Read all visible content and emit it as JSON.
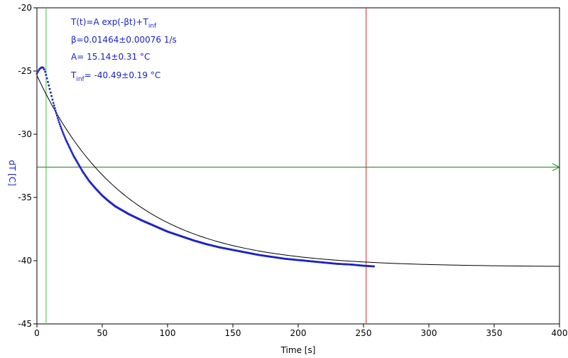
{
  "chart_data": {
    "type": "scatter",
    "xlabel": "Time [s]",
    "ylabel": "dT [C]",
    "xlim": [
      0,
      400
    ],
    "ylim": [
      -45,
      -20
    ],
    "xticks": [
      "0",
      "50",
      "100",
      "150",
      "200",
      "250",
      "300",
      "350",
      "400"
    ],
    "yticks": [
      "-20",
      "-25",
      "-30",
      "-35",
      "-40",
      "-45"
    ],
    "grid": false,
    "annotations": {
      "line1": "T(t)=A exp(-βt)+T",
      "line1_sub": "inf",
      "line2": "β=0.01464±0.00076 1/s",
      "line3": "A= 15.14±0.31 °C",
      "line4_prefix": "T",
      "line4_sub": "inf",
      "line4_rest": "= -40.49±0.19 °C"
    },
    "fit": {
      "A": 15.14,
      "beta": 0.01464,
      "T_inf": -40.49
    },
    "cursors": {
      "green_x": 7,
      "red_x": 252,
      "horizontal_y": -32.6
    },
    "series": [
      {
        "role": "measured",
        "x": [
          0,
          1,
          2,
          3,
          4,
          5,
          6,
          7,
          8,
          9,
          10,
          12,
          14,
          16,
          18,
          20,
          22,
          25,
          28,
          30,
          35,
          40,
          45,
          50,
          55,
          60,
          70,
          80,
          90,
          100,
          110,
          120,
          130,
          140,
          150,
          160,
          170,
          180,
          190,
          200,
          210,
          220,
          230,
          240,
          250,
          258
        ],
        "y": [
          -25.2,
          -25.0,
          -24.85,
          -24.75,
          -24.7,
          -24.75,
          -24.95,
          -25.3,
          -25.7,
          -26.1,
          -26.5,
          -27.3,
          -28.05,
          -28.75,
          -29.35,
          -29.9,
          -30.4,
          -31.05,
          -31.7,
          -32.05,
          -32.95,
          -33.7,
          -34.3,
          -34.85,
          -35.3,
          -35.7,
          -36.3,
          -36.8,
          -37.25,
          -37.7,
          -38.05,
          -38.4,
          -38.7,
          -38.95,
          -39.15,
          -39.35,
          -39.55,
          -39.7,
          -39.85,
          -39.95,
          -40.05,
          -40.15,
          -40.25,
          -40.3,
          -40.4,
          -40.45
        ]
      }
    ],
    "colors": {
      "data": "#1a23c8",
      "fit": "#000000",
      "green_cursor": "#33cc33",
      "red_cursor": "#dd2222",
      "horizontal_cursor": "#1a7a1a",
      "ytick_text": "#1a23c8",
      "annotation_text": "#1a23c8"
    }
  }
}
